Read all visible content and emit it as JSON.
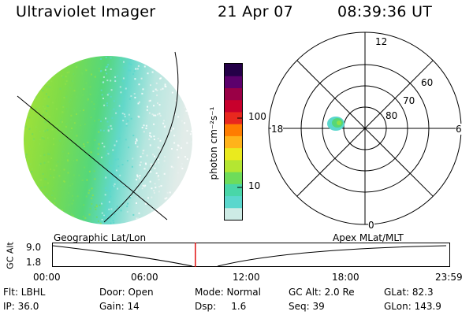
{
  "header": {
    "instrument": "Ultraviolet Imager",
    "date": "21 Apr 07",
    "time": "08:39:36 UT"
  },
  "colorbar": {
    "unit_label": "photon cm⁻²s⁻¹",
    "ticks": [
      "100",
      "10"
    ],
    "colors": [
      "#cdebe5",
      "#5ad7cd",
      "#49d6a8",
      "#6edc5a",
      "#b4e632",
      "#eaea1e",
      "#ffb31a",
      "#ff7d00",
      "#e8281e",
      "#c8002c",
      "#9a0046",
      "#5c006c",
      "#240048"
    ]
  },
  "polar_plot": {
    "clock_labels": [
      "12",
      "18",
      "6",
      "0"
    ],
    "lat_labels": [
      "60",
      "70",
      "80"
    ]
  },
  "timeline": {
    "left_title": "Geographic Lat/Lon",
    "right_title": "Apex MLat/MLT",
    "ylabel": "GC Alt",
    "yticks": [
      "9.0",
      "1.8"
    ],
    "xticks": [
      "00:00",
      "06:00",
      "12:00",
      "18:00",
      "23:59"
    ],
    "current_time_fraction": 0.3608,
    "marker_color": "#e01010"
  },
  "footer": {
    "row1": [
      "Flt: LBHL",
      "Door: Open",
      "Mode: Normal",
      "GC Alt: 2.0 Re",
      "GLat: 82.3"
    ],
    "row2": [
      "IP: 36.0",
      "Gain: 14",
      "Dsp:     1.6",
      "Seq: 39",
      "GLon: 143.9"
    ]
  }
}
